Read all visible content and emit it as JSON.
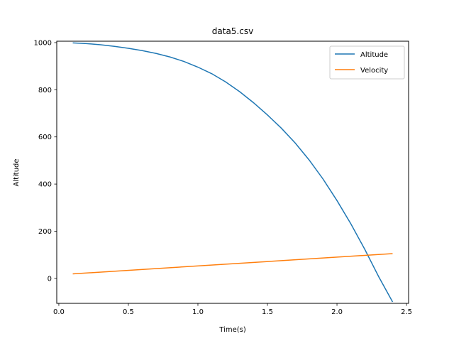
{
  "chart_data": {
    "type": "line",
    "title": "data5.csv",
    "xlabel": "Time(s)",
    "ylabel": "Altitude",
    "xlim": [
      -0.015,
      2.515
    ],
    "ylim": [
      -106,
      1006
    ],
    "xticks": [
      0.0,
      0.5,
      1.0,
      1.5,
      2.0,
      2.5
    ],
    "xtick_labels": [
      "0.0",
      "0.5",
      "1.0",
      "1.5",
      "2.0",
      "2.5"
    ],
    "yticks": [
      0,
      200,
      400,
      600,
      800,
      1000
    ],
    "ytick_labels": [
      "0",
      "200",
      "400",
      "600",
      "800",
      "1000"
    ],
    "grid": false,
    "legend_position": "top-right",
    "series": [
      {
        "name": "Altitude",
        "color": "#1f77b4",
        "x": [
          0.1,
          0.2,
          0.3,
          0.4,
          0.5,
          0.6,
          0.7,
          0.8,
          0.9,
          1.0,
          1.1,
          1.2,
          1.3,
          1.4,
          1.5,
          1.6,
          1.7,
          1.8,
          1.9,
          2.0,
          2.1,
          2.2,
          2.3,
          2.4
        ],
        "values": [
          999,
          996,
          991,
          984,
          976,
          966,
          954,
          939,
          920,
          896,
          868,
          833,
          792,
          745,
          693,
          637,
          574,
          502,
          421,
          330,
          231,
          123,
          7,
          -100
        ]
      },
      {
        "name": "Velocity",
        "color": "#ff7f0e",
        "x": [
          0.1,
          2.4
        ],
        "values": [
          19,
          105
        ]
      }
    ]
  }
}
